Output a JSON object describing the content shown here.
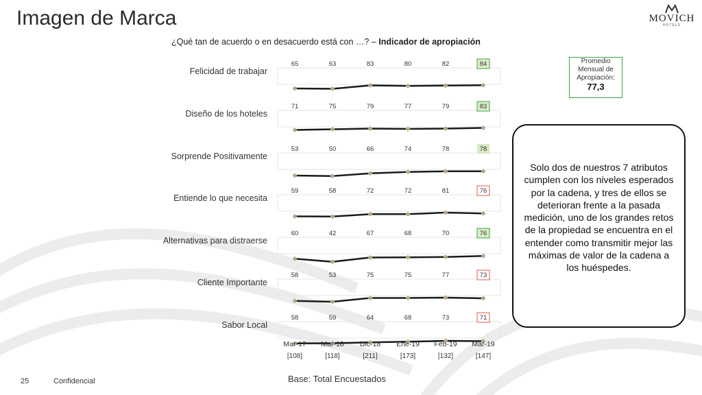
{
  "title": "Imagen de Marca",
  "brand": {
    "name": "MOVICH",
    "tagline": "HOTELS"
  },
  "subtitle": {
    "question": "¿Qué tan de acuerdo o en desacuerdo está con …? – ",
    "indicator": "Indicador de apropiación"
  },
  "average_box": {
    "label": "Promedio Mensual de Apropiación:",
    "value": "77,3"
  },
  "callout": "Solo dos de nuestros 7 atributos cumplen con los niveles esperados por la cadena, y tres de ellos se deterioran frente a la pasada medición, uno de los grandes retos de la propiedad se encuentra en el entender como transmitir mejor las máximas de valor de la cadena a los huéspedes.",
  "footer": {
    "page": "25",
    "confidential": "Confidencial",
    "base": "Base: Total Encuestados"
  },
  "colors": {
    "line": "#1a1a1a",
    "marker": "#b5a48a",
    "good": "#3aa34a",
    "good_fill": "#dcecc8",
    "bad": "#e05a4a",
    "neutral_fill": "#d6e8c4"
  },
  "chart_data": {
    "type": "line",
    "periods": [
      "Mar-17",
      "Mar-18",
      "Dic-18",
      "Ene-19",
      "Feb-19",
      "Mar-19"
    ],
    "bases": [
      "[108]",
      "[118]",
      "[211]",
      "[173]",
      "[132]",
      "[147]"
    ],
    "series": [
      {
        "name": "Felicidad de trabajar",
        "values": [
          65,
          63,
          83,
          80,
          82,
          84
        ],
        "last_status": "good"
      },
      {
        "name": "Diseño de los hoteles",
        "values": [
          71,
          75,
          79,
          77,
          79,
          83
        ],
        "last_status": "good"
      },
      {
        "name": "Sorprende Positivamente",
        "values": [
          53,
          50,
          66,
          74,
          78,
          78
        ],
        "last_status": "neutral"
      },
      {
        "name": "Entiende lo que necesita",
        "values": [
          59,
          58,
          72,
          72,
          81,
          76
        ],
        "last_status": "bad"
      },
      {
        "name": "Alternativas para distraerse",
        "values": [
          60,
          42,
          67,
          68,
          70,
          76
        ],
        "last_status": "good"
      },
      {
        "name": "Cliente Importante",
        "values": [
          58,
          53,
          75,
          75,
          77,
          73
        ],
        "last_status": "bad"
      },
      {
        "name": "Sabor Local",
        "values": [
          58,
          59,
          64,
          68,
          73,
          71
        ],
        "last_status": "bad"
      }
    ]
  }
}
